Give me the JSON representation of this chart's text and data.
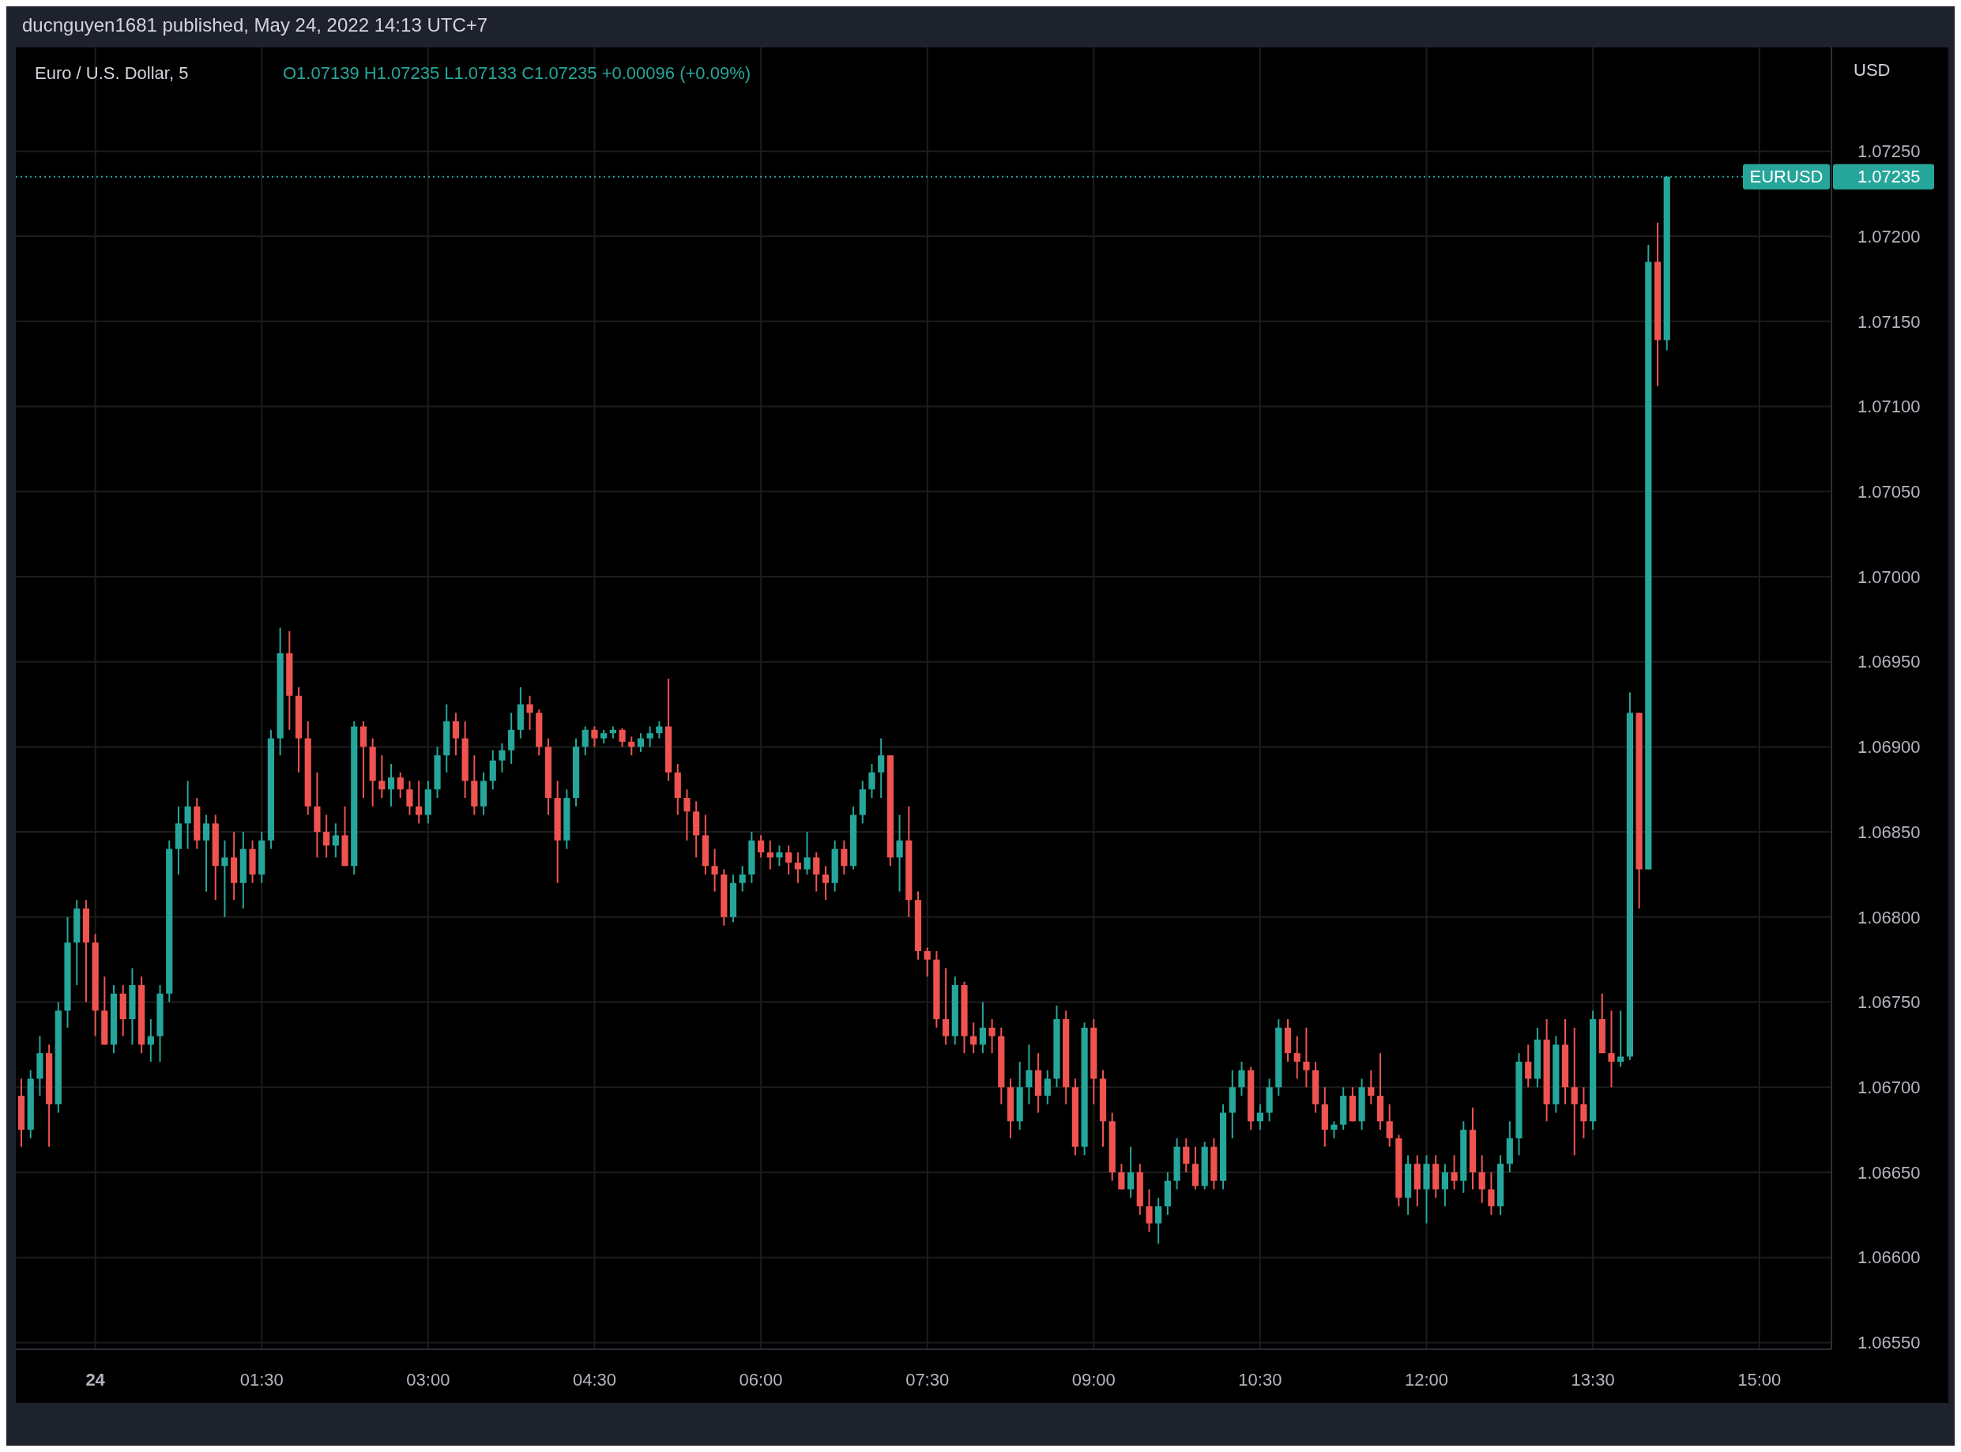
{
  "chart_data": {
    "type": "candlestick",
    "title": "Euro / U.S. Dollar, 5",
    "ylabel": "USD",
    "annotations": [
      "ducnguyen1681 published, May 24, 2022 14:13 UTC+7",
      "O1.07139 H1.07235 L1.07133 C1.07235 +0.00096 (+0.09%)",
      "1.07235"
    ],
    "x": [
      "2022-05-23T23:20",
      "2022-05-23T23:25",
      "2022-05-23T23:30",
      "2022-05-23T23:35",
      "2022-05-23T23:40",
      "2022-05-23T23:45",
      "2022-05-23T23:50",
      "2022-05-23T23:55",
      "2022-05-24T00:00",
      "2022-05-24T00:05",
      "2022-05-24T00:10",
      "2022-05-24T00:15",
      "2022-05-24T00:20",
      "2022-05-24T00:25",
      "2022-05-24T00:30",
      "2022-05-24T00:35",
      "2022-05-24T00:40",
      "2022-05-24T00:45",
      "2022-05-24T00:50",
      "2022-05-24T00:55",
      "2022-05-24T01:00",
      "2022-05-24T01:05",
      "2022-05-24T01:10",
      "2022-05-24T01:15",
      "2022-05-24T01:20",
      "2022-05-24T01:25",
      "2022-05-24T01:30",
      "2022-05-24T01:35",
      "2022-05-24T01:40",
      "2022-05-24T01:45",
      "2022-05-24T01:50",
      "2022-05-24T01:55",
      "2022-05-24T02:00",
      "2022-05-24T02:05",
      "2022-05-24T02:10",
      "2022-05-24T02:15",
      "2022-05-24T02:20",
      "2022-05-24T02:25",
      "2022-05-24T02:30",
      "2022-05-24T02:35",
      "2022-05-24T02:40",
      "2022-05-24T02:45",
      "2022-05-24T02:50",
      "2022-05-24T02:55",
      "2022-05-24T03:00",
      "2022-05-24T03:05",
      "2022-05-24T03:10",
      "2022-05-24T03:15",
      "2022-05-24T03:20",
      "2022-05-24T03:25",
      "2022-05-24T03:30",
      "2022-05-24T03:35",
      "2022-05-24T03:40",
      "2022-05-24T03:45",
      "2022-05-24T03:50",
      "2022-05-24T03:55",
      "2022-05-24T04:00",
      "2022-05-24T04:05",
      "2022-05-24T04:10",
      "2022-05-24T04:15",
      "2022-05-24T04:20",
      "2022-05-24T04:25",
      "2022-05-24T04:30",
      "2022-05-24T04:35",
      "2022-05-24T04:40",
      "2022-05-24T04:45",
      "2022-05-24T04:50",
      "2022-05-24T04:55",
      "2022-05-24T05:00",
      "2022-05-24T05:05",
      "2022-05-24T05:10",
      "2022-05-24T05:15",
      "2022-05-24T05:20",
      "2022-05-24T05:25",
      "2022-05-24T05:30",
      "2022-05-24T05:35",
      "2022-05-24T05:40",
      "2022-05-24T05:45",
      "2022-05-24T05:50",
      "2022-05-24T05:55",
      "2022-05-24T06:00",
      "2022-05-24T06:05",
      "2022-05-24T06:10",
      "2022-05-24T06:15",
      "2022-05-24T06:20",
      "2022-05-24T06:25",
      "2022-05-24T06:30",
      "2022-05-24T06:35",
      "2022-05-24T06:40",
      "2022-05-24T06:45",
      "2022-05-24T06:50",
      "2022-05-24T06:55",
      "2022-05-24T07:00",
      "2022-05-24T07:05",
      "2022-05-24T07:10",
      "2022-05-24T07:15",
      "2022-05-24T07:20",
      "2022-05-24T07:25",
      "2022-05-24T07:30",
      "2022-05-24T07:35",
      "2022-05-24T07:40",
      "2022-05-24T07:45",
      "2022-05-24T07:50",
      "2022-05-24T07:55",
      "2022-05-24T08:00",
      "2022-05-24T08:05",
      "2022-05-24T08:10",
      "2022-05-24T08:15",
      "2022-05-24T08:20",
      "2022-05-24T08:25",
      "2022-05-24T08:30",
      "2022-05-24T08:35",
      "2022-05-24T08:40",
      "2022-05-24T08:45",
      "2022-05-24T08:50",
      "2022-05-24T08:55",
      "2022-05-24T09:00",
      "2022-05-24T09:05",
      "2022-05-24T09:10",
      "2022-05-24T09:15",
      "2022-05-24T09:20",
      "2022-05-24T09:25",
      "2022-05-24T09:30",
      "2022-05-24T09:35",
      "2022-05-24T09:40",
      "2022-05-24T09:45",
      "2022-05-24T09:50",
      "2022-05-24T09:55",
      "2022-05-24T10:00",
      "2022-05-24T10:05",
      "2022-05-24T10:10",
      "2022-05-24T10:15",
      "2022-05-24T10:20",
      "2022-05-24T10:25",
      "2022-05-24T10:30",
      "2022-05-24T10:35",
      "2022-05-24T10:40",
      "2022-05-24T10:45",
      "2022-05-24T10:50",
      "2022-05-24T10:55",
      "2022-05-24T11:00",
      "2022-05-24T11:05",
      "2022-05-24T11:10",
      "2022-05-24T11:15",
      "2022-05-24T11:20",
      "2022-05-24T11:25",
      "2022-05-24T11:30",
      "2022-05-24T11:35",
      "2022-05-24T11:40",
      "2022-05-24T11:45",
      "2022-05-24T11:50",
      "2022-05-24T11:55",
      "2022-05-24T12:00",
      "2022-05-24T12:05",
      "2022-05-24T12:10",
      "2022-05-24T12:15",
      "2022-05-24T12:20",
      "2022-05-24T12:25",
      "2022-05-24T12:30",
      "2022-05-24T12:35",
      "2022-05-24T12:40",
      "2022-05-24T12:45",
      "2022-05-24T12:50",
      "2022-05-24T12:55",
      "2022-05-24T13:00",
      "2022-05-24T13:05",
      "2022-05-24T13:10",
      "2022-05-24T13:15",
      "2022-05-24T13:20",
      "2022-05-24T13:25",
      "2022-05-24T13:30",
      "2022-05-24T13:35",
      "2022-05-24T13:40",
      "2022-05-24T13:45",
      "2022-05-24T13:50",
      "2022-05-24T13:55",
      "2022-05-24T14:00",
      "2022-05-24T14:05",
      "2022-05-24T14:10"
    ],
    "ohlc": [
      [
        1.06695,
        1.06705,
        1.06665,
        1.06675
      ],
      [
        1.06675,
        1.0671,
        1.0667,
        1.06705
      ],
      [
        1.06705,
        1.0673,
        1.06695,
        1.0672
      ],
      [
        1.0672,
        1.06725,
        1.06665,
        1.0669
      ],
      [
        1.0669,
        1.0675,
        1.06685,
        1.06745
      ],
      [
        1.06745,
        1.068,
        1.06735,
        1.06785
      ],
      [
        1.06785,
        1.0681,
        1.0676,
        1.06805
      ],
      [
        1.06805,
        1.0681,
        1.0675,
        1.06785
      ],
      [
        1.06785,
        1.0679,
        1.0673,
        1.06745
      ],
      [
        1.06745,
        1.06765,
        1.06725,
        1.06725
      ],
      [
        1.06725,
        1.0676,
        1.0672,
        1.06755
      ],
      [
        1.06755,
        1.0676,
        1.0673,
        1.0674
      ],
      [
        1.0674,
        1.0677,
        1.06725,
        1.0676
      ],
      [
        1.0676,
        1.06765,
        1.0672,
        1.06725
      ],
      [
        1.06725,
        1.0674,
        1.06715,
        1.0673
      ],
      [
        1.0673,
        1.0676,
        1.06715,
        1.06755
      ],
      [
        1.06755,
        1.06845,
        1.0675,
        1.0684
      ],
      [
        1.0684,
        1.06865,
        1.06825,
        1.06855
      ],
      [
        1.06855,
        1.0688,
        1.0684,
        1.06865
      ],
      [
        1.06865,
        1.0687,
        1.0684,
        1.06845
      ],
      [
        1.06845,
        1.0686,
        1.06815,
        1.06855
      ],
      [
        1.06855,
        1.0686,
        1.0681,
        1.0683
      ],
      [
        1.0683,
        1.06845,
        1.068,
        1.06835
      ],
      [
        1.06835,
        1.0685,
        1.0681,
        1.0682
      ],
      [
        1.0682,
        1.0685,
        1.06805,
        1.0684
      ],
      [
        1.0684,
        1.06845,
        1.0682,
        1.06825
      ],
      [
        1.06825,
        1.0685,
        1.0682,
        1.06845
      ],
      [
        1.06845,
        1.0691,
        1.0684,
        1.06905
      ],
      [
        1.06905,
        1.0697,
        1.06895,
        1.06955
      ],
      [
        1.06955,
        1.06968,
        1.0691,
        1.0693
      ],
      [
        1.0693,
        1.06935,
        1.06885,
        1.06905
      ],
      [
        1.06905,
        1.06915,
        1.0686,
        1.06865
      ],
      [
        1.06865,
        1.06885,
        1.06835,
        1.0685
      ],
      [
        1.0685,
        1.0686,
        1.06835,
        1.06842
      ],
      [
        1.06842,
        1.06855,
        1.06835,
        1.06848
      ],
      [
        1.06848,
        1.06865,
        1.0683,
        1.0683
      ],
      [
        1.0683,
        1.06915,
        1.06825,
        1.06912
      ],
      [
        1.06912,
        1.06915,
        1.0687,
        1.069
      ],
      [
        1.069,
        1.06905,
        1.06865,
        1.0688
      ],
      [
        1.0688,
        1.06895,
        1.0687,
        1.06875
      ],
      [
        1.06875,
        1.0689,
        1.06865,
        1.06882
      ],
      [
        1.06882,
        1.06885,
        1.0687,
        1.06875
      ],
      [
        1.06875,
        1.0688,
        1.0686,
        1.06865
      ],
      [
        1.06865,
        1.0688,
        1.06855,
        1.0686
      ],
      [
        1.0686,
        1.0688,
        1.06855,
        1.06875
      ],
      [
        1.06875,
        1.069,
        1.0687,
        1.06895
      ],
      [
        1.06895,
        1.06925,
        1.06885,
        1.06915
      ],
      [
        1.06915,
        1.0692,
        1.06895,
        1.06905
      ],
      [
        1.06905,
        1.06915,
        1.0687,
        1.0688
      ],
      [
        1.0688,
        1.06895,
        1.0686,
        1.06865
      ],
      [
        1.06865,
        1.06885,
        1.0686,
        1.0688
      ],
      [
        1.0688,
        1.06898,
        1.06875,
        1.06892
      ],
      [
        1.06892,
        1.06902,
        1.06885,
        1.06898
      ],
      [
        1.06898,
        1.0692,
        1.0689,
        1.0691
      ],
      [
        1.0691,
        1.06935,
        1.06905,
        1.06925
      ],
      [
        1.06925,
        1.0693,
        1.0691,
        1.0692
      ],
      [
        1.0692,
        1.06922,
        1.06895,
        1.069
      ],
      [
        1.069,
        1.06905,
        1.0686,
        1.0687
      ],
      [
        1.0687,
        1.0688,
        1.0682,
        1.06845
      ],
      [
        1.06845,
        1.06875,
        1.0684,
        1.0687
      ],
      [
        1.0687,
        1.06905,
        1.06865,
        1.069
      ],
      [
        1.069,
        1.06912,
        1.06895,
        1.0691
      ],
      [
        1.0691,
        1.06912,
        1.069,
        1.06905
      ],
      [
        1.06905,
        1.0691,
        1.06902,
        1.06908
      ],
      [
        1.06908,
        1.06912,
        1.06905,
        1.0691
      ],
      [
        1.0691,
        1.06911,
        1.069,
        1.06903
      ],
      [
        1.06903,
        1.06906,
        1.06895,
        1.069
      ],
      [
        1.069,
        1.06908,
        1.06897,
        1.06905
      ],
      [
        1.06905,
        1.06912,
        1.069,
        1.06908
      ],
      [
        1.06908,
        1.06915,
        1.06905,
        1.06912
      ],
      [
        1.06912,
        1.0694,
        1.0688,
        1.06885
      ],
      [
        1.06885,
        1.0689,
        1.0686,
        1.0687
      ],
      [
        1.0687,
        1.06875,
        1.06845,
        1.06862
      ],
      [
        1.06862,
        1.06868,
        1.06835,
        1.06848
      ],
      [
        1.06848,
        1.0686,
        1.06825,
        1.0683
      ],
      [
        1.0683,
        1.0684,
        1.06815,
        1.06825
      ],
      [
        1.06825,
        1.06828,
        1.06795,
        1.068
      ],
      [
        1.068,
        1.06825,
        1.06797,
        1.0682
      ],
      [
        1.0682,
        1.0683,
        1.06815,
        1.06825
      ],
      [
        1.06825,
        1.0685,
        1.0682,
        1.06845
      ],
      [
        1.06845,
        1.06848,
        1.06835,
        1.06838
      ],
      [
        1.06838,
        1.06845,
        1.06828,
        1.06835
      ],
      [
        1.06835,
        1.06842,
        1.0683,
        1.06838
      ],
      [
        1.06838,
        1.06842,
        1.06825,
        1.06832
      ],
      [
        1.06832,
        1.06838,
        1.0682,
        1.06828
      ],
      [
        1.06828,
        1.0685,
        1.06825,
        1.06835
      ],
      [
        1.06835,
        1.06838,
        1.06815,
        1.06825
      ],
      [
        1.06825,
        1.0683,
        1.0681,
        1.0682
      ],
      [
        1.0682,
        1.06845,
        1.06815,
        1.0684
      ],
      [
        1.0684,
        1.06845,
        1.06825,
        1.0683
      ],
      [
        1.0683,
        1.06865,
        1.06828,
        1.0686
      ],
      [
        1.0686,
        1.0688,
        1.06855,
        1.06875
      ],
      [
        1.06875,
        1.0689,
        1.0687,
        1.06885
      ],
      [
        1.06885,
        1.06905,
        1.0687,
        1.06895
      ],
      [
        1.06895,
        1.06895,
        1.0683,
        1.06835
      ],
      [
        1.06835,
        1.0686,
        1.06815,
        1.06845
      ],
      [
        1.06845,
        1.06865,
        1.068,
        1.0681
      ],
      [
        1.0681,
        1.06815,
        1.06775,
        1.0678
      ],
      [
        1.0678,
        1.06782,
        1.06765,
        1.06775
      ],
      [
        1.06775,
        1.0678,
        1.06735,
        1.0674
      ],
      [
        1.0674,
        1.0677,
        1.06725,
        1.0673
      ],
      [
        1.0673,
        1.06765,
        1.06725,
        1.0676
      ],
      [
        1.0676,
        1.06762,
        1.0672,
        1.0673
      ],
      [
        1.0673,
        1.06738,
        1.0672,
        1.06725
      ],
      [
        1.06725,
        1.0675,
        1.0672,
        1.06735
      ],
      [
        1.06735,
        1.0674,
        1.0672,
        1.0673
      ],
      [
        1.0673,
        1.06735,
        1.0669,
        1.067
      ],
      [
        1.067,
        1.06705,
        1.0667,
        1.0668
      ],
      [
        1.0668,
        1.06715,
        1.06675,
        1.067
      ],
      [
        1.067,
        1.06725,
        1.0669,
        1.0671
      ],
      [
        1.0671,
        1.0672,
        1.06685,
        1.06695
      ],
      [
        1.06695,
        1.0671,
        1.0669,
        1.06705
      ],
      [
        1.06705,
        1.06748,
        1.067,
        1.0674
      ],
      [
        1.0674,
        1.06745,
        1.0669,
        1.067
      ],
      [
        1.067,
        1.06705,
        1.0666,
        1.06665
      ],
      [
        1.06665,
        1.06738,
        1.0666,
        1.06735
      ],
      [
        1.06735,
        1.0674,
        1.0669,
        1.06705
      ],
      [
        1.06705,
        1.0671,
        1.06665,
        1.0668
      ],
      [
        1.0668,
        1.06685,
        1.06645,
        1.0665
      ],
      [
        1.0665,
        1.06655,
        1.0664,
        1.0664
      ],
      [
        1.0664,
        1.06665,
        1.06635,
        1.0665
      ],
      [
        1.0665,
        1.06655,
        1.06625,
        1.0663
      ],
      [
        1.0663,
        1.0664,
        1.06615,
        1.0662
      ],
      [
        1.0662,
        1.06635,
        1.06608,
        1.0663
      ],
      [
        1.0663,
        1.0665,
        1.06625,
        1.06645
      ],
      [
        1.06645,
        1.0667,
        1.0664,
        1.06665
      ],
      [
        1.06665,
        1.0667,
        1.0665,
        1.06655
      ],
      [
        1.06655,
        1.06665,
        1.0664,
        1.06642
      ],
      [
        1.06642,
        1.06668,
        1.0664,
        1.06665
      ],
      [
        1.06665,
        1.0667,
        1.0664,
        1.06645
      ],
      [
        1.06645,
        1.0669,
        1.0664,
        1.06685
      ],
      [
        1.06685,
        1.0671,
        1.0667,
        1.067
      ],
      [
        1.067,
        1.06715,
        1.06695,
        1.0671
      ],
      [
        1.0671,
        1.06712,
        1.06675,
        1.0668
      ],
      [
        1.0668,
        1.0669,
        1.06675,
        1.06685
      ],
      [
        1.06685,
        1.06705,
        1.0668,
        1.067
      ],
      [
        1.067,
        1.0674,
        1.06695,
        1.06735
      ],
      [
        1.06735,
        1.0674,
        1.06715,
        1.0672
      ],
      [
        1.0672,
        1.0673,
        1.06705,
        1.06715
      ],
      [
        1.06715,
        1.06735,
        1.067,
        1.0671
      ],
      [
        1.0671,
        1.06715,
        1.06685,
        1.0669
      ],
      [
        1.0669,
        1.067,
        1.06665,
        1.06675
      ],
      [
        1.06675,
        1.0668,
        1.0667,
        1.06678
      ],
      [
        1.06678,
        1.067,
        1.06675,
        1.06695
      ],
      [
        1.06695,
        1.067,
        1.0668,
        1.0668
      ],
      [
        1.0668,
        1.06705,
        1.06675,
        1.067
      ],
      [
        1.067,
        1.0671,
        1.0669,
        1.06695
      ],
      [
        1.06695,
        1.0672,
        1.06675,
        1.0668
      ],
      [
        1.0668,
        1.0669,
        1.06665,
        1.0667
      ],
      [
        1.0667,
        1.06672,
        1.0663,
        1.06635
      ],
      [
        1.06635,
        1.0666,
        1.06625,
        1.06655
      ],
      [
        1.06655,
        1.0666,
        1.0663,
        1.0664
      ],
      [
        1.0664,
        1.0666,
        1.0662,
        1.06655
      ],
      [
        1.06655,
        1.0666,
        1.06635,
        1.0664
      ],
      [
        1.0664,
        1.06655,
        1.0663,
        1.0665
      ],
      [
        1.0665,
        1.0666,
        1.0664,
        1.06645
      ],
      [
        1.06645,
        1.0668,
        1.06638,
        1.06675
      ],
      [
        1.06675,
        1.06688,
        1.0664,
        1.0665
      ],
      [
        1.0665,
        1.0666,
        1.06632,
        1.0664
      ],
      [
        1.0664,
        1.0665,
        1.06625,
        1.0663
      ],
      [
        1.0663,
        1.0666,
        1.06625,
        1.06655
      ],
      [
        1.06655,
        1.0668,
        1.0665,
        1.0667
      ],
      [
        1.0667,
        1.0672,
        1.0666,
        1.06715
      ],
      [
        1.06715,
        1.06725,
        1.067,
        1.06705
      ],
      [
        1.06705,
        1.06735,
        1.067,
        1.06728
      ],
      [
        1.06728,
        1.0674,
        1.0668,
        1.0669
      ],
      [
        1.0669,
        1.0673,
        1.06685,
        1.06725
      ],
      [
        1.06725,
        1.0674,
        1.0669,
        1.067
      ],
      [
        1.067,
        1.06735,
        1.0666,
        1.0669
      ],
      [
        1.0669,
        1.067,
        1.0667,
        1.0668
      ],
      [
        1.0668,
        1.06745,
        1.06675,
        1.0674
      ],
      [
        1.0674,
        1.06755,
        1.0672,
        1.0672
      ],
      [
        1.0672,
        1.06745,
        1.067,
        1.06715
      ],
      [
        1.06715,
        1.06745,
        1.06712,
        1.06718
      ],
      [
        1.06718,
        1.06932,
        1.06716,
        1.0692
      ],
      [
        1.0692,
        1.0692,
        1.06805,
        1.06828
      ],
      [
        1.06828,
        1.07195,
        1.06828,
        1.07185
      ],
      [
        1.07185,
        1.07208,
        1.07112,
        1.07139
      ],
      [
        1.07139,
        1.07235,
        1.07133,
        1.07235
      ]
    ],
    "xlim": [
      "2022-05-23T23:17",
      "2022-05-24T15:39"
    ],
    "xticks": [
      {
        "value": "2022-05-24T00:00",
        "label": "24"
      },
      {
        "value": "2022-05-24T01:30",
        "label": "01:30"
      },
      {
        "value": "2022-05-24T03:00",
        "label": "03:00"
      },
      {
        "value": "2022-05-24T04:30",
        "label": "04:30"
      },
      {
        "value": "2022-05-24T06:00",
        "label": "06:00"
      },
      {
        "value": "2022-05-24T07:30",
        "label": "07:30"
      },
      {
        "value": "2022-05-24T09:00",
        "label": "09:00"
      },
      {
        "value": "2022-05-24T10:30",
        "label": "10:30"
      },
      {
        "value": "2022-05-24T12:00",
        "label": "12:00"
      },
      {
        "value": "2022-05-24T13:30",
        "label": "13:30"
      },
      {
        "value": "2022-05-24T15:00",
        "label": "15:00"
      }
    ],
    "ylim": [
      1.06546,
      1.07311
    ],
    "yticks": [
      {
        "value": 1.0655,
        "label": "1.06550"
      },
      {
        "value": 1.066,
        "label": "1.06600"
      },
      {
        "value": 1.0665,
        "label": "1.06650"
      },
      {
        "value": 1.067,
        "label": "1.06700"
      },
      {
        "value": 1.0675,
        "label": "1.06750"
      },
      {
        "value": 1.068,
        "label": "1.06800"
      },
      {
        "value": 1.0685,
        "label": "1.06850"
      },
      {
        "value": 1.069,
        "label": "1.06900"
      },
      {
        "value": 1.0695,
        "label": "1.06950"
      },
      {
        "value": 1.07,
        "label": "1.07000"
      },
      {
        "value": 1.0705,
        "label": "1.07050"
      },
      {
        "value": 1.071,
        "label": "1.07100"
      },
      {
        "value": 1.0715,
        "label": "1.07150"
      },
      {
        "value": 1.072,
        "label": "1.07200"
      },
      {
        "value": 1.0725,
        "label": "1.07250"
      }
    ],
    "ref_lines": [
      {
        "axis": "y",
        "value": 1.07235,
        "label": "EURUSD",
        "color": "#26a69a",
        "line_style": "dotted"
      }
    ],
    "grid": true
  }
}
